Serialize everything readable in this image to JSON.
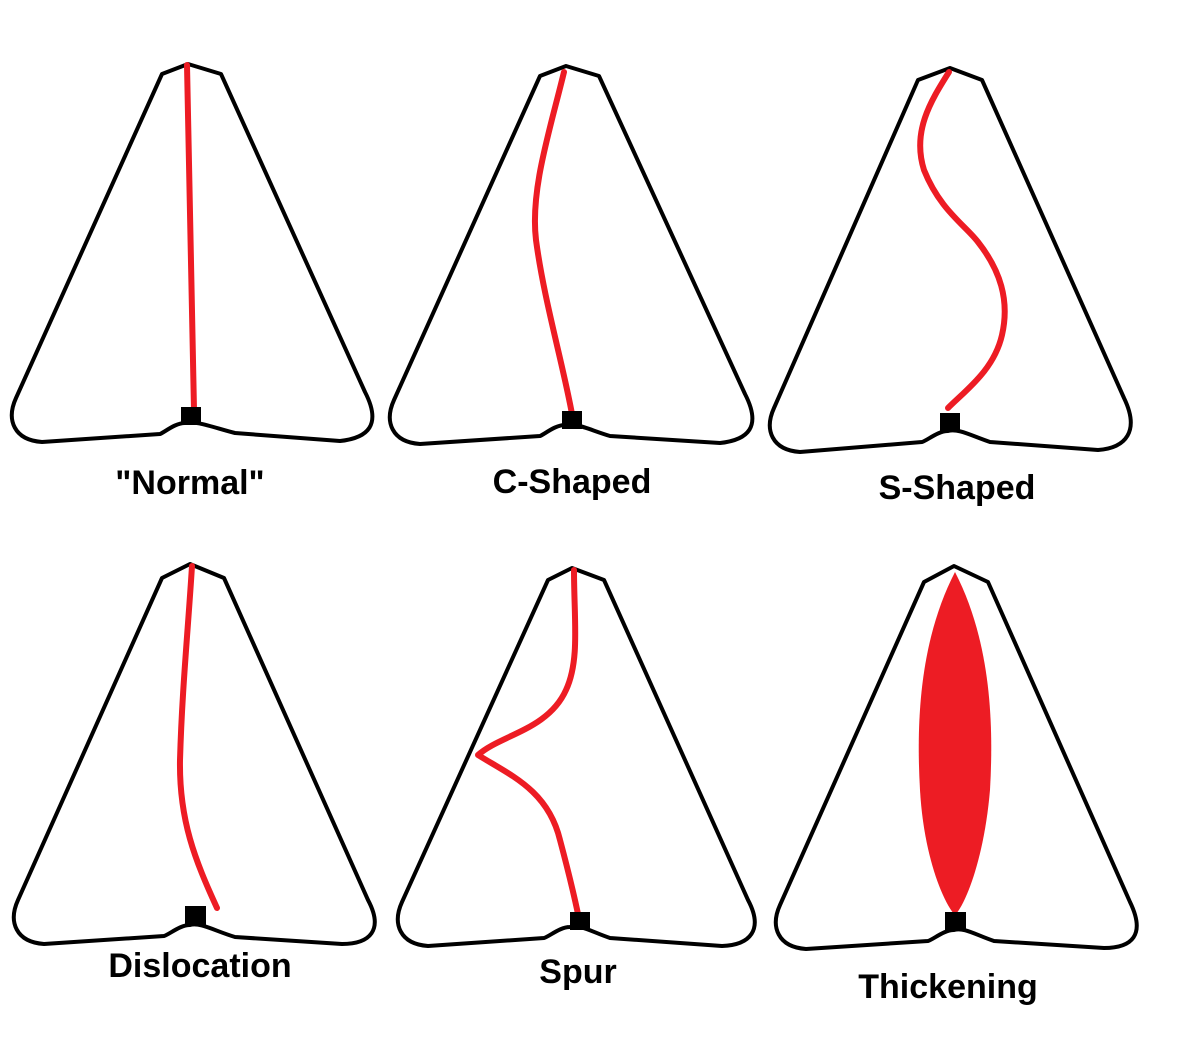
{
  "colors": {
    "septum": "#ed1c24",
    "outline": "#000000",
    "background": "#ffffff"
  },
  "panels": [
    {
      "id": "normal",
      "label": "\"Normal\""
    },
    {
      "id": "c-shaped",
      "label": "C-Shaped"
    },
    {
      "id": "s-shaped",
      "label": "S-Shaped"
    },
    {
      "id": "dislocation",
      "label": "Dislocation"
    },
    {
      "id": "spur",
      "label": "Spur"
    },
    {
      "id": "thickening",
      "label": "Thickening"
    }
  ]
}
